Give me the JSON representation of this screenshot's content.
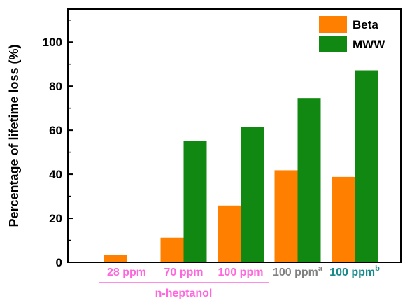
{
  "chart_data": {
    "type": "bar",
    "categories": [
      "28 ppm",
      "70 ppm",
      "100 ppm",
      "100 ppm",
      "100 ppm"
    ],
    "category_superscripts": [
      "",
      "",
      "",
      "a",
      "b"
    ],
    "category_colors": [
      "#ff66dd",
      "#ff66dd",
      "#ff66dd",
      "#808080",
      "#1a8a8a"
    ],
    "group_label": {
      "text": "n-heptanol",
      "color": "#ff66dd",
      "spans_categories": [
        0,
        2
      ]
    },
    "series": [
      {
        "name": "Beta",
        "color": "#ff8000",
        "values": [
          3.2,
          11.2,
          25.8,
          41.8,
          38.8
        ]
      },
      {
        "name": "MWW",
        "color": "#118811",
        "values": [
          0,
          55.2,
          61.6,
          74.6,
          87.2
        ]
      }
    ],
    "title": "",
    "xlabel": "",
    "ylabel": "Percentage of lifetime loss (%)",
    "ylim": [
      0,
      115
    ],
    "yticks": [
      0,
      20,
      40,
      60,
      80,
      100
    ],
    "grid": false,
    "legend": "top-right"
  }
}
